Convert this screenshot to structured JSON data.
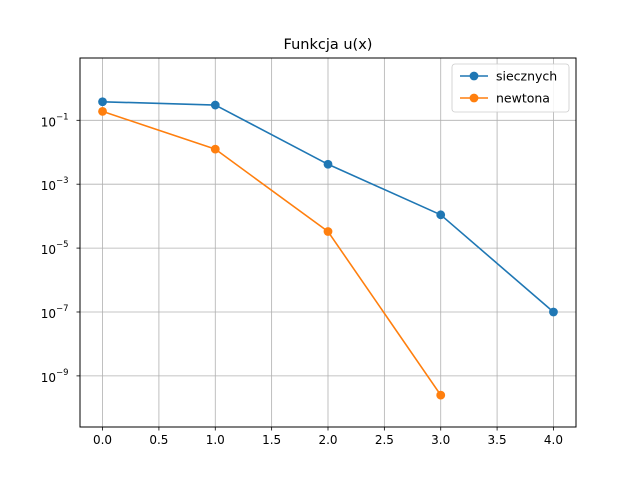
{
  "chart_data": {
    "type": "line",
    "title": "Funkcja u(x)",
    "xlabel": "",
    "ylabel": "",
    "xlim": [
      -0.2,
      4.2
    ],
    "ylim_log10": [
      -10.6,
      0.95
    ],
    "yscale": "log",
    "grid": true,
    "legend_position": "top-right",
    "x_ticks": [
      {
        "value": 0.0,
        "label": "0.0"
      },
      {
        "value": 0.5,
        "label": "0.5"
      },
      {
        "value": 1.0,
        "label": "1.0"
      },
      {
        "value": 1.5,
        "label": "1.5"
      },
      {
        "value": 2.0,
        "label": "2.0"
      },
      {
        "value": 2.5,
        "label": "2.5"
      },
      {
        "value": 3.0,
        "label": "3.0"
      },
      {
        "value": 3.5,
        "label": "3.5"
      },
      {
        "value": 4.0,
        "label": "4.0"
      }
    ],
    "y_ticks": [
      {
        "exp": -1,
        "base": "10",
        "power": "−1"
      },
      {
        "exp": -3,
        "base": "10",
        "power": "−3"
      },
      {
        "exp": -5,
        "base": "10",
        "power": "−5"
      },
      {
        "exp": -7,
        "base": "10",
        "power": "−7"
      },
      {
        "exp": -9,
        "base": "10",
        "power": "−9"
      }
    ],
    "series": [
      {
        "name": "siecznych",
        "color": "#1f77b4",
        "x": [
          0,
          1,
          2,
          3,
          4
        ],
        "y": [
          0.38,
          0.3,
          0.0042,
          0.00011,
          1e-07
        ]
      },
      {
        "name": "newtona",
        "color": "#ff7f0e",
        "x": [
          0,
          1,
          2,
          3
        ],
        "y": [
          0.19,
          0.0125,
          3.3e-05,
          2.5e-10
        ]
      }
    ]
  }
}
